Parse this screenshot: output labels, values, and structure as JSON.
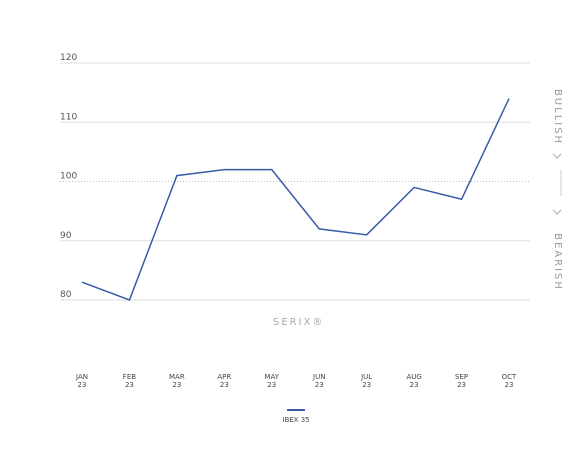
{
  "chart_data": {
    "type": "line",
    "categories": [
      "JAN\n23",
      "FEB\n23",
      "MAR\n23",
      "APR\n23",
      "MAY\n23",
      "JUN\n23",
      "JUL\n23",
      "AUG\n23",
      "SEP\n23",
      "OCT\n23"
    ],
    "series": [
      {
        "name": "IBEX 35",
        "color": "#3a5ba8",
        "values": [
          83,
          80,
          101,
          102,
          102,
          92,
          91,
          99,
          97,
          114
        ]
      }
    ],
    "ylim": [
      80,
      120
    ],
    "yticks": [
      80,
      90,
      100,
      110,
      120
    ],
    "grid": true,
    "right_labels": [
      "BULLISH",
      "BEARISH"
    ],
    "watermark": "SERIX®",
    "legend": "bottom"
  }
}
